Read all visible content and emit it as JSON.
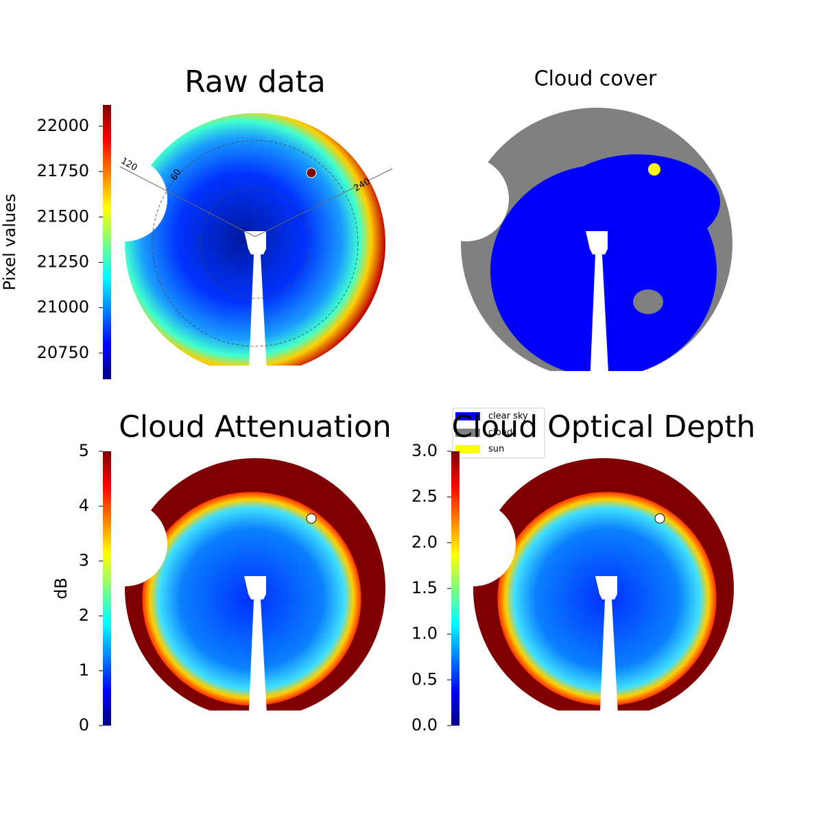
{
  "chart_data": [
    {
      "type": "image",
      "title": "Raw data",
      "colorbar_label": "Pixel values",
      "colormap": "jet",
      "ylim": [
        20606,
        22117
      ],
      "yticks": [
        20750,
        21000,
        21250,
        21500,
        21750,
        22000
      ],
      "annotations": [
        "120",
        "60",
        "240"
      ]
    },
    {
      "type": "image",
      "title": "Cloud cover",
      "legend": [
        {
          "name": "clear sky",
          "color": "#0000ff"
        },
        {
          "name": "cloud",
          "color": "#808080"
        },
        {
          "name": "sun",
          "color": "#ffff00"
        }
      ]
    },
    {
      "type": "image",
      "title": "Cloud Attenuation",
      "colorbar_label": "dB",
      "colormap": "jet",
      "ylim": [
        0,
        5
      ],
      "yticks": [
        0,
        1,
        2,
        3,
        4,
        5
      ]
    },
    {
      "type": "image",
      "title": "Cloud Optical Depth",
      "colormap": "jet",
      "ylim": [
        0,
        3
      ],
      "yticks": [
        {
          "value": 0,
          "label": "0.0"
        },
        {
          "value": 0.5,
          "label": "0.5"
        },
        {
          "value": 1,
          "label": "1.0"
        },
        {
          "value": 1.5,
          "label": "1.5"
        },
        {
          "value": 2,
          "label": "2.0"
        },
        {
          "value": 2.5,
          "label": "2.5"
        },
        {
          "value": 3,
          "label": "3.0"
        }
      ]
    }
  ]
}
